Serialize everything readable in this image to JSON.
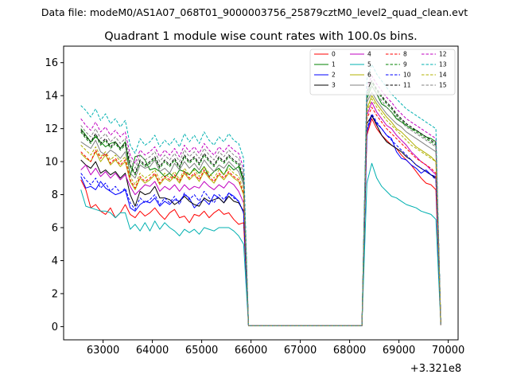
{
  "header": {
    "suptitle": "Data file: modeM0/AS1A07_068T01_9000003756_25879cztM0_level2_quad_clean.evt"
  },
  "chart_data": {
    "type": "line",
    "title": "Quadrant 1 module wise count rates with 100.0s bins.",
    "xlabel": "",
    "ylabel": "",
    "offset_text": "+3.321e8",
    "xlim": [
      62200,
      70200
    ],
    "ylim": [
      -0.8,
      17
    ],
    "xticks": [
      63000,
      64000,
      65000,
      66000,
      67000,
      68000,
      69000,
      70000
    ],
    "yticks": [
      0,
      2,
      4,
      6,
      8,
      10,
      12,
      14,
      16
    ],
    "legend_position": "top-right",
    "x_segments": [
      {
        "start": 62550,
        "end": 65850,
        "step": 100
      },
      {
        "start": 65850,
        "end": 68250,
        "step": 100
      },
      {
        "start": 68250,
        "end": 69850,
        "step": 100
      }
    ],
    "series": [
      {
        "name": "0",
        "color": "#ff0000",
        "dash": false,
        "seg1": [
          8.9,
          8.3,
          7.2,
          7.4,
          7.0,
          6.8,
          7.2,
          6.6,
          6.9,
          7.4,
          6.8,
          6.6,
          7.0,
          6.7,
          6.9,
          7.2,
          6.8,
          6.5,
          6.9,
          7.1,
          6.6,
          6.7,
          6.3,
          6.8,
          6.7,
          7.0,
          6.6,
          6.9,
          7.1,
          6.8,
          6.9,
          6.5,
          6.2,
          6.3
        ],
        "seg3": [
          0.05,
          11.6,
          12.6,
          12.0,
          11.6,
          11.3,
          11.0,
          10.8,
          10.4,
          10.1,
          9.8,
          9.4,
          9.0,
          8.7,
          8.6,
          8.3,
          0.1
        ]
      },
      {
        "name": "1",
        "color": "#008000",
        "dash": false,
        "seg1": [
          12.0,
          11.6,
          11.2,
          11.5,
          11.2,
          10.9,
          11.1,
          11.2,
          10.8,
          11.2,
          9.1,
          10.3,
          10.4,
          10.1,
          9.5,
          9.6,
          9.4,
          9.1,
          9.3,
          9.0,
          9.5,
          9.4,
          9.2,
          9.6,
          9.3,
          9.7,
          9.1,
          9.4,
          9.6,
          9.2,
          9.8,
          9.5,
          9.7,
          8.8
        ],
        "seg3": [
          0.05,
          13.8,
          14.6,
          14.1,
          13.5,
          13.3,
          13.0,
          12.6,
          12.4,
          12.2,
          12.0,
          11.9,
          11.7,
          11.5,
          11.4,
          11.2,
          0.1
        ]
      },
      {
        "name": "2",
        "color": "#0000ff",
        "dash": false,
        "seg1": [
          9.1,
          8.4,
          8.5,
          8.3,
          8.8,
          8.4,
          8.2,
          8.0,
          8.1,
          8.3,
          7.2,
          7.0,
          7.4,
          7.6,
          7.5,
          7.8,
          7.3,
          7.6,
          7.4,
          7.7,
          7.6,
          8.0,
          7.8,
          7.2,
          7.5,
          7.7,
          7.4,
          8.0,
          7.8,
          7.5,
          8.1,
          7.9,
          7.6,
          6.9
        ],
        "seg3": [
          0.05,
          11.8,
          12.8,
          12.3,
          12.0,
          11.6,
          11.4,
          10.6,
          10.2,
          10.1,
          9.8,
          9.6,
          9.3,
          9.5,
          9.2,
          9.1,
          0.1
        ]
      },
      {
        "name": "3",
        "color": "#000000",
        "dash": false,
        "seg1": [
          10.1,
          9.8,
          9.6,
          10.0,
          9.3,
          9.5,
          9.2,
          9.4,
          9.0,
          9.3,
          8.0,
          7.3,
          8.2,
          8.0,
          8.1,
          8.5,
          7.8,
          7.8,
          7.7,
          7.4,
          7.6,
          7.9,
          7.6,
          7.4,
          7.3,
          7.8,
          7.6,
          7.7,
          7.8,
          7.5,
          7.9,
          7.6,
          7.5,
          7.0
        ],
        "seg3": [
          0.05,
          12.3,
          12.8,
          12.2,
          11.6,
          11.2,
          11.0,
          10.8,
          10.6,
          10.3,
          10.1,
          9.8,
          9.6,
          9.4,
          9.2,
          9.0,
          0.1
        ]
      },
      {
        "name": "4",
        "color": "#c000c0",
        "dash": false,
        "seg1": [
          9.5,
          9.8,
          9.2,
          9.6,
          9.1,
          9.4,
          9.0,
          9.3,
          8.9,
          9.2,
          8.5,
          8.0,
          8.3,
          8.6,
          8.5,
          8.8,
          8.2,
          8.5,
          8.3,
          8.6,
          8.2,
          8.6,
          8.3,
          8.5,
          8.4,
          8.8,
          8.5,
          8.3,
          8.6,
          8.4,
          8.8,
          8.6,
          8.2,
          7.5
        ],
        "seg3": [
          0.05,
          12.8,
          13.6,
          13.0,
          12.6,
          12.2,
          12.0,
          11.6,
          11.3,
          11.0,
          10.6,
          10.3,
          10.0,
          9.8,
          9.5,
          9.2,
          0.1
        ]
      },
      {
        "name": "5",
        "color": "#00b0b0",
        "dash": false,
        "seg1": [
          8.3,
          7.3,
          7.2,
          7.1,
          7.0,
          7.0,
          6.9,
          6.6,
          6.9,
          6.9,
          5.9,
          6.2,
          5.8,
          6.3,
          5.8,
          6.4,
          5.9,
          6.3,
          6.0,
          5.8,
          5.5,
          5.9,
          5.7,
          5.9,
          5.6,
          6.0,
          5.9,
          5.8,
          6.0,
          6.0,
          6.0,
          5.8,
          5.5,
          5.0
        ],
        "seg3": [
          0.05,
          8.7,
          9.9,
          9.0,
          8.5,
          8.2,
          7.9,
          7.8,
          7.6,
          7.4,
          7.3,
          7.2,
          7.0,
          6.9,
          6.8,
          6.5,
          0.1
        ]
      },
      {
        "name": "6",
        "color": "#b0b000",
        "dash": false,
        "seg1": [
          10.5,
          10.2,
          10.0,
          10.6,
          10.0,
          10.4,
          9.8,
          10.1,
          9.7,
          10.0,
          8.8,
          8.3,
          9.0,
          8.7,
          8.9,
          9.2,
          8.6,
          9.0,
          8.8,
          9.1,
          8.7,
          9.3,
          8.9,
          9.2,
          8.8,
          9.4,
          9.0,
          8.7,
          9.2,
          8.9,
          9.3,
          9.0,
          8.8,
          8.0
        ],
        "seg3": [
          0.05,
          13.2,
          14.0,
          13.5,
          13.1,
          12.7,
          12.4,
          12.0,
          11.8,
          11.5,
          11.2,
          10.9,
          10.7,
          10.5,
          10.3,
          10.0,
          0.1
        ]
      },
      {
        "name": "7",
        "color": "#808080",
        "dash": false,
        "seg1": [
          11.2,
          11.0,
          10.8,
          11.3,
          10.6,
          10.4,
          10.7,
          10.5,
          10.2,
          10.6,
          9.3,
          9.0,
          9.8,
          9.6,
          9.7,
          10.1,
          9.4,
          9.6,
          9.3,
          9.9,
          9.5,
          10.0,
          9.6,
          9.9,
          9.5,
          10.1,
          9.7,
          9.4,
          9.8,
          9.6,
          10.0,
          9.7,
          9.4,
          8.6
        ],
        "seg3": [
          0.05,
          13.6,
          14.2,
          13.7,
          13.3,
          12.9,
          12.6,
          12.3,
          12.1,
          11.8,
          11.6,
          11.4,
          11.2,
          11.0,
          10.8,
          10.6,
          0.1
        ]
      },
      {
        "name": "8",
        "color": "#ff0000",
        "dash": true,
        "seg1": [
          10.6,
          10.3,
          10.0,
          10.7,
          10.2,
          10.5,
          9.9,
          10.2,
          9.8,
          10.1,
          8.9,
          8.4,
          9.1,
          8.8,
          9.0,
          9.3,
          8.7,
          9.1,
          8.9,
          9.2,
          8.8,
          9.4,
          9.0,
          9.3,
          8.9,
          9.5,
          9.1,
          8.8,
          9.3,
          9.0,
          9.4,
          9.1,
          8.9,
          8.1
        ],
        "seg3": [
          0.05,
          12.6,
          13.3,
          12.8,
          12.4,
          12.0,
          11.7,
          11.4,
          11.1,
          10.8,
          10.5,
          10.2,
          10.0,
          9.8,
          9.6,
          9.3,
          0.1
        ]
      },
      {
        "name": "9",
        "color": "#008000",
        "dash": true,
        "seg1": [
          11.8,
          11.4,
          11.1,
          11.6,
          11.0,
          11.3,
          10.8,
          11.1,
          10.7,
          11.0,
          9.7,
          9.2,
          10.0,
          9.7,
          9.9,
          10.2,
          9.6,
          10.0,
          9.7,
          10.1,
          9.6,
          10.3,
          9.9,
          10.2,
          9.8,
          10.4,
          10.0,
          9.7,
          10.2,
          9.9,
          10.3,
          10.0,
          9.8,
          8.9
        ],
        "seg3": [
          0.05,
          14.0,
          14.8,
          14.3,
          13.9,
          13.5,
          13.2,
          12.8,
          12.5,
          12.2,
          12.0,
          11.8,
          11.6,
          11.4,
          11.2,
          11.0,
          0.1
        ]
      },
      {
        "name": "10",
        "color": "#0000ff",
        "dash": true,
        "seg1": [
          9.3,
          8.9,
          8.6,
          9.0,
          8.4,
          8.7,
          8.2,
          8.5,
          8.1,
          8.4,
          7.5,
          7.1,
          7.8,
          7.5,
          7.7,
          8.0,
          7.4,
          7.8,
          7.5,
          7.9,
          7.4,
          8.1,
          7.7,
          8.0,
          7.6,
          8.2,
          7.8,
          7.5,
          8.0,
          7.7,
          8.1,
          7.8,
          7.6,
          6.9
        ],
        "seg3": [
          0.05,
          12.0,
          12.9,
          12.4,
          12.0,
          11.6,
          11.3,
          11.0,
          10.7,
          10.4,
          10.1,
          9.8,
          9.6,
          9.4,
          9.2,
          8.9,
          0.1
        ]
      },
      {
        "name": "11",
        "color": "#000000",
        "dash": true,
        "seg1": [
          11.9,
          11.5,
          11.2,
          11.7,
          11.1,
          11.4,
          10.9,
          11.2,
          10.8,
          11.1,
          9.8,
          9.3,
          10.1,
          9.8,
          10.0,
          10.3,
          9.7,
          10.1,
          9.8,
          10.2,
          9.7,
          10.4,
          10.0,
          10.3,
          9.9,
          10.5,
          10.1,
          9.8,
          10.3,
          10.0,
          10.4,
          10.1,
          9.9,
          9.0
        ],
        "seg3": [
          0.05,
          14.2,
          14.9,
          14.4,
          14.0,
          13.6,
          13.3,
          12.9,
          12.6,
          12.3,
          12.1,
          11.9,
          11.7,
          11.5,
          11.3,
          11.1,
          0.1
        ]
      },
      {
        "name": "12",
        "color": "#c000c0",
        "dash": true,
        "seg1": [
          12.6,
          12.2,
          11.9,
          12.4,
          11.8,
          12.1,
          11.6,
          11.9,
          11.5,
          11.8,
          10.4,
          9.9,
          10.7,
          10.4,
          10.6,
          10.9,
          10.3,
          10.7,
          10.4,
          10.8,
          10.3,
          11.0,
          10.6,
          10.9,
          10.5,
          11.1,
          10.7,
          10.4,
          10.9,
          10.6,
          11.0,
          10.7,
          10.5,
          9.6
        ],
        "seg3": [
          0.05,
          14.5,
          15.2,
          14.7,
          14.3,
          13.9,
          13.6,
          13.2,
          12.9,
          12.6,
          12.4,
          12.2,
          12.0,
          11.8,
          11.6,
          11.4,
          0.1
        ]
      },
      {
        "name": "13",
        "color": "#00b0b0",
        "dash": true,
        "seg1": [
          13.4,
          13.1,
          12.7,
          13.2,
          12.5,
          12.9,
          12.3,
          12.6,
          12.1,
          12.5,
          11.0,
          10.5,
          11.4,
          11.0,
          11.2,
          11.6,
          10.9,
          11.3,
          11.0,
          11.4,
          10.9,
          11.7,
          11.2,
          11.6,
          11.1,
          11.8,
          11.3,
          11.0,
          11.5,
          11.2,
          11.7,
          11.3,
          11.1,
          10.2
        ],
        "seg3": [
          0.05,
          15.0,
          15.9,
          15.3,
          14.9,
          14.5,
          14.1,
          13.8,
          13.5,
          13.2,
          13.0,
          12.8,
          12.6,
          12.4,
          12.2,
          12.0,
          0.1
        ]
      },
      {
        "name": "14",
        "color": "#b0b000",
        "dash": true,
        "seg1": [
          11.0,
          10.7,
          10.4,
          10.9,
          10.3,
          10.6,
          10.1,
          10.4,
          10.0,
          10.3,
          9.1,
          8.6,
          9.3,
          9.0,
          9.2,
          9.5,
          8.9,
          9.3,
          9.0,
          9.4,
          8.9,
          9.6,
          9.2,
          9.5,
          9.1,
          9.7,
          9.3,
          9.0,
          9.5,
          9.2,
          9.6,
          9.3,
          9.1,
          8.3
        ],
        "seg3": [
          0.05,
          13.0,
          13.8,
          13.3,
          12.9,
          12.5,
          12.2,
          11.9,
          11.6,
          11.3,
          11.0,
          10.8,
          10.6,
          10.4,
          10.2,
          10.0,
          0.1
        ]
      },
      {
        "name": "15",
        "color": "#808080",
        "dash": true,
        "seg1": [
          12.2,
          11.8,
          11.5,
          12.0,
          11.4,
          11.7,
          11.2,
          11.5,
          11.1,
          11.4,
          10.1,
          9.6,
          10.4,
          10.1,
          10.3,
          10.6,
          10.0,
          10.4,
          10.1,
          10.5,
          10.0,
          10.7,
          10.3,
          10.6,
          10.2,
          10.8,
          10.4,
          10.1,
          10.6,
          10.3,
          10.7,
          10.4,
          10.2,
          9.3
        ],
        "seg3": [
          0.05,
          14.1,
          14.6,
          14.1,
          13.7,
          13.3,
          13.0,
          12.7,
          12.4,
          12.1,
          11.9,
          11.7,
          11.5,
          11.3,
          11.1,
          10.9,
          0.1
        ]
      }
    ],
    "gap_value": 0.05
  }
}
